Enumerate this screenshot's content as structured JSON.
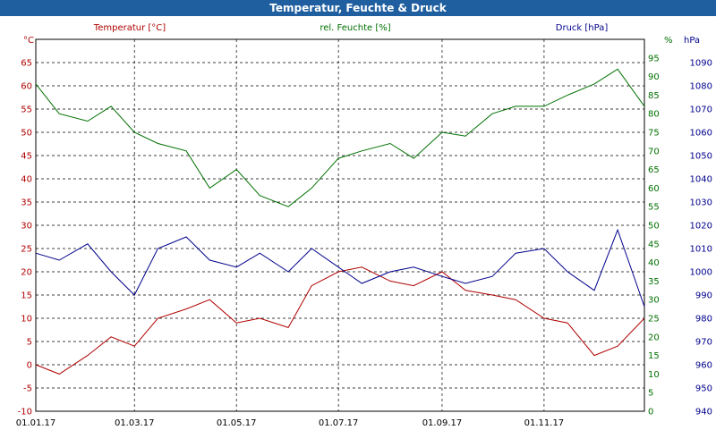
{
  "window": {
    "title": "Temperatur, Feuchte & Druck"
  },
  "colors": {
    "temperature": "#b00000",
    "humidity": "#007000",
    "pressure": "#00008c",
    "grid": "#000000",
    "titlebar": "#1f5fa0"
  },
  "chart_data": {
    "type": "line",
    "title": "Temperatur, Feuchte & Druck",
    "x_tick_labels": [
      "01.01.17",
      "01.03.17",
      "01.05.17",
      "01.07.17",
      "01.09.17",
      "01.11.17"
    ],
    "axes": {
      "left": {
        "unit_label": "°C",
        "range": [
          -10,
          70
        ],
        "ticks": [
          -10,
          -5,
          0,
          5,
          10,
          15,
          20,
          25,
          30,
          35,
          40,
          45,
          50,
          55,
          60,
          65
        ]
      },
      "right1": {
        "unit_label": "%",
        "range": [
          0,
          100
        ],
        "ticks": [
          0,
          5,
          10,
          15,
          20,
          25,
          30,
          35,
          40,
          45,
          50,
          55,
          60,
          65,
          70,
          75,
          80,
          85,
          90,
          95
        ]
      },
      "right2": {
        "unit_label": "hPa",
        "range": [
          940,
          1100
        ],
        "ticks": [
          940,
          950,
          960,
          970,
          980,
          990,
          1000,
          1010,
          1020,
          1030,
          1040,
          1050,
          1060,
          1070,
          1080,
          1090
        ]
      }
    },
    "grid": true,
    "series": [
      {
        "name": "Temperatur [°C]",
        "axis": "left",
        "x": [
          "2017-01-01",
          "2017-01-15",
          "2017-02-01",
          "2017-02-15",
          "2017-03-01",
          "2017-03-15",
          "2017-04-01",
          "2017-04-15",
          "2017-05-01",
          "2017-05-15",
          "2017-06-01",
          "2017-06-15",
          "2017-07-01",
          "2017-07-15",
          "2017-08-01",
          "2017-08-15",
          "2017-09-01",
          "2017-09-15",
          "2017-10-01",
          "2017-10-15",
          "2017-11-01",
          "2017-11-15",
          "2017-12-01",
          "2017-12-15",
          "2017-12-31"
        ],
        "values": [
          0,
          -2,
          2,
          6,
          4,
          10,
          12,
          14,
          9,
          10,
          8,
          17,
          20,
          21,
          18,
          17,
          20,
          16,
          15,
          14,
          10,
          9,
          2,
          4,
          10
        ]
      },
      {
        "name": "rel. Feuchte [%]",
        "axis": "right1",
        "x": [
          "2017-01-01",
          "2017-01-15",
          "2017-02-01",
          "2017-02-15",
          "2017-03-01",
          "2017-03-15",
          "2017-04-01",
          "2017-04-15",
          "2017-05-01",
          "2017-05-15",
          "2017-06-01",
          "2017-06-15",
          "2017-07-01",
          "2017-07-15",
          "2017-08-01",
          "2017-08-15",
          "2017-09-01",
          "2017-09-15",
          "2017-10-01",
          "2017-10-15",
          "2017-11-01",
          "2017-11-15",
          "2017-12-01",
          "2017-12-15",
          "2017-12-31"
        ],
        "values": [
          88,
          80,
          78,
          82,
          75,
          72,
          70,
          60,
          65,
          58,
          55,
          60,
          68,
          70,
          72,
          68,
          75,
          74,
          80,
          82,
          82,
          85,
          88,
          92,
          82
        ]
      },
      {
        "name": "Druck [hPa]",
        "axis": "right2",
        "x": [
          "2017-01-01",
          "2017-01-15",
          "2017-02-01",
          "2017-02-15",
          "2017-03-01",
          "2017-03-15",
          "2017-04-01",
          "2017-04-15",
          "2017-05-01",
          "2017-05-15",
          "2017-06-01",
          "2017-06-15",
          "2017-07-01",
          "2017-07-15",
          "2017-08-01",
          "2017-08-15",
          "2017-09-01",
          "2017-09-15",
          "2017-10-01",
          "2017-10-15",
          "2017-11-01",
          "2017-11-15",
          "2017-12-01",
          "2017-12-15",
          "2017-12-31"
        ],
        "values": [
          1008,
          1005,
          1012,
          1000,
          990,
          1010,
          1015,
          1005,
          1002,
          1008,
          1000,
          1010,
          1002,
          995,
          1000,
          1002,
          998,
          995,
          998,
          1008,
          1010,
          1000,
          992,
          1018,
          985
        ]
      }
    ]
  }
}
